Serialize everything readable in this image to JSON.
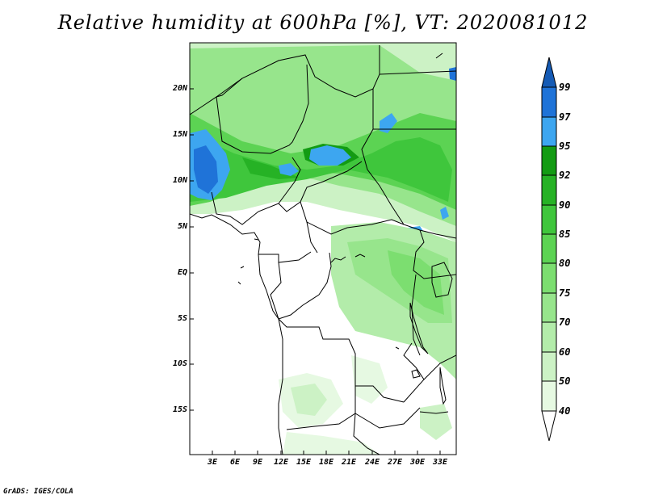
{
  "title": "Relative humidity at 600hPa [%], VT: 2020081012",
  "credit": "GrADS: IGES/COLA",
  "latitude_labels": [
    "20N",
    "15N",
    "10N",
    "5N",
    "EQ",
    "5S",
    "10S",
    "15S"
  ],
  "longitude_labels": [
    "3E",
    "6E",
    "9E",
    "12E",
    "15E",
    "18E",
    "21E",
    "24E",
    "27E",
    "30E",
    "33E"
  ],
  "colorbar": {
    "levels": [
      "40",
      "50",
      "60",
      "70",
      "75",
      "80",
      "85",
      "90",
      "92",
      "95",
      "97",
      "99"
    ],
    "colors": [
      "#ffffff",
      "#e6f9e2",
      "#ccf2c5",
      "#b3ecaa",
      "#97e58c",
      "#7cde70",
      "#5cd353",
      "#3fc63c",
      "#26b225",
      "#139b13",
      "#3da6f0",
      "#1f73d8",
      "#155bb5"
    ]
  },
  "chart_data": {
    "type": "heatmap",
    "variable": "Relative humidity at 600hPa",
    "units": "%",
    "valid_time": "2020081012",
    "lat_range": [
      -19.5,
      24.5
    ],
    "lon_range": [
      0,
      35
    ],
    "color_levels": [
      40,
      50,
      60,
      70,
      75,
      80,
      85,
      90,
      92,
      95,
      97,
      99
    ]
  }
}
